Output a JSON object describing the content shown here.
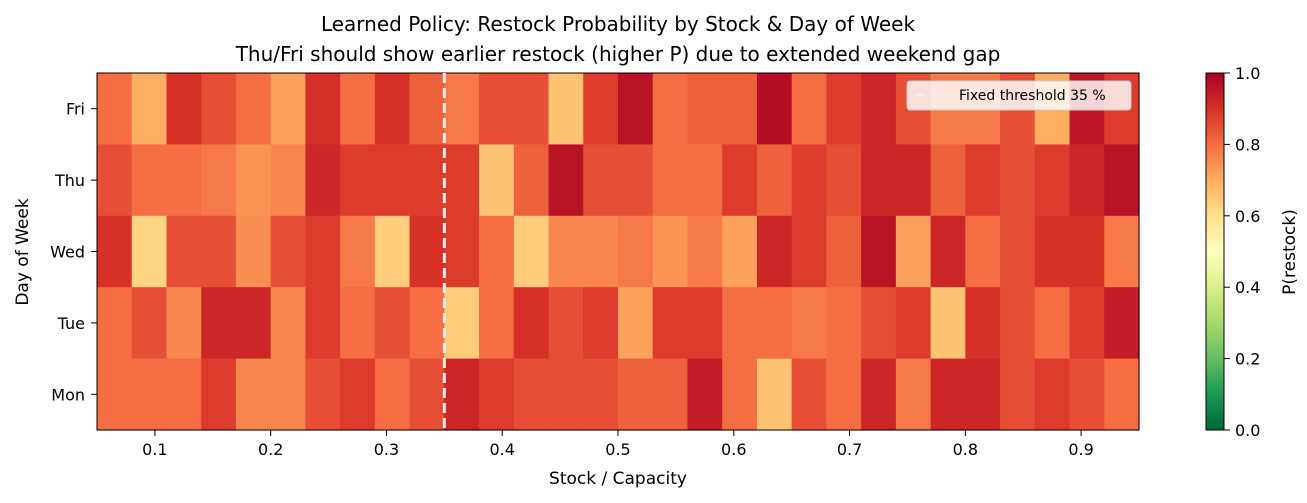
{
  "chart_data": {
    "type": "heatmap",
    "title": "Learned Policy: Restock Probability by Stock & Day of Week",
    "subtitle": "Thu/Fri should show earlier restock (higher P) due to extended weekend gap",
    "xlabel": "Stock / Capacity",
    "ylabel": "Day of Week",
    "x_range": [
      0.05,
      0.95
    ],
    "x_ticks": [
      0.1,
      0.2,
      0.3,
      0.4,
      0.5,
      0.6,
      0.7,
      0.8,
      0.9
    ],
    "x_tick_labels": [
      "0.1",
      "0.2",
      "0.3",
      "0.4",
      "0.5",
      "0.6",
      "0.7",
      "0.8",
      "0.9"
    ],
    "rows": [
      "Fri",
      "Thu",
      "Wed",
      "Tue",
      "Mon"
    ],
    "columns_count": 30,
    "values": [
      [
        0.8,
        0.7,
        0.9,
        0.85,
        0.8,
        0.72,
        0.9,
        0.8,
        0.9,
        0.82,
        0.78,
        0.85,
        0.85,
        0.66,
        0.88,
        0.96,
        0.8,
        0.82,
        0.82,
        0.97,
        0.8,
        0.88,
        0.92,
        0.85,
        0.78,
        0.78,
        0.85,
        0.7,
        0.95,
        0.88
      ],
      [
        0.85,
        0.8,
        0.8,
        0.78,
        0.74,
        0.76,
        0.92,
        0.88,
        0.88,
        0.88,
        0.88,
        0.66,
        0.82,
        0.96,
        0.85,
        0.85,
        0.8,
        0.8,
        0.88,
        0.82,
        0.88,
        0.85,
        0.92,
        0.92,
        0.82,
        0.88,
        0.85,
        0.88,
        0.92,
        0.96
      ],
      [
        0.9,
        0.62,
        0.85,
        0.85,
        0.75,
        0.85,
        0.88,
        0.78,
        0.64,
        0.9,
        0.88,
        0.8,
        0.64,
        0.76,
        0.76,
        0.78,
        0.74,
        0.78,
        0.72,
        0.92,
        0.88,
        0.82,
        0.96,
        0.72,
        0.92,
        0.8,
        0.85,
        0.9,
        0.9,
        0.78
      ],
      [
        0.8,
        0.85,
        0.76,
        0.92,
        0.92,
        0.76,
        0.88,
        0.8,
        0.85,
        0.8,
        0.64,
        0.8,
        0.9,
        0.85,
        0.88,
        0.72,
        0.88,
        0.88,
        0.8,
        0.8,
        0.78,
        0.8,
        0.85,
        0.88,
        0.66,
        0.9,
        0.85,
        0.8,
        0.88,
        0.94
      ],
      [
        0.8,
        0.8,
        0.8,
        0.88,
        0.76,
        0.76,
        0.85,
        0.88,
        0.8,
        0.85,
        0.92,
        0.88,
        0.85,
        0.85,
        0.85,
        0.82,
        0.82,
        0.94,
        0.8,
        0.66,
        0.85,
        0.8,
        0.92,
        0.78,
        0.92,
        0.92,
        0.85,
        0.88,
        0.85,
        0.8
      ]
    ],
    "vmin": 0.0,
    "vmax": 1.0,
    "colormap": "RdYlGn_r",
    "colorbar": {
      "label": "P(restock)",
      "ticks": [
        0.0,
        0.2,
        0.4,
        0.6,
        0.8,
        1.0
      ],
      "tick_labels": [
        "0.0",
        "0.2",
        "0.4",
        "0.6",
        "0.8",
        "1.0"
      ]
    },
    "threshold": {
      "x": 0.35,
      "label": "Fixed threshold 35 %",
      "color": "#f5ecec",
      "style": "dashed"
    },
    "legend_placement": "top-right",
    "grid": false
  }
}
